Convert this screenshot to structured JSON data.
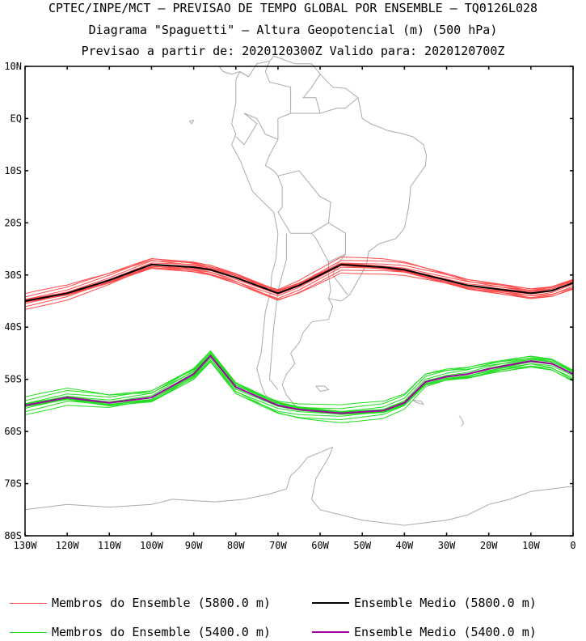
{
  "title": {
    "line1": "CPTEC/INPE/MCT — PREVISAO DE TEMPO GLOBAL POR ENSEMBLE — TQ0126L028",
    "line2": "Diagrama \"Spaguetti\" — Altura Geopotencial (m) (500 hPa)",
    "line3": "Previsao a partir de: 2020120300Z  Valido para: 2020120700Z"
  },
  "colors": {
    "member_5800": "#ff4b4b",
    "member_5400": "#22dd22",
    "mean_5800": "#000000",
    "mean_5400": "#a000a0",
    "coast": "#aaaaaa"
  },
  "map": {
    "lon_range": [
      -130,
      0
    ],
    "lat_range": [
      -80,
      10
    ],
    "lat_ticks": [
      {
        "value": 10,
        "label": "10N"
      },
      {
        "value": 0,
        "label": "EQ"
      },
      {
        "value": -10,
        "label": "10S"
      },
      {
        "value": -20,
        "label": "20S"
      },
      {
        "value": -30,
        "label": "30S"
      },
      {
        "value": -40,
        "label": "40S"
      },
      {
        "value": -50,
        "label": "50S"
      },
      {
        "value": -60,
        "label": "60S"
      },
      {
        "value": -70,
        "label": "70S"
      },
      {
        "value": -80,
        "label": "80S"
      }
    ],
    "lon_ticks": [
      {
        "value": -130,
        "label": "130W"
      },
      {
        "value": -120,
        "label": "120W"
      },
      {
        "value": -110,
        "label": "110W"
      },
      {
        "value": -100,
        "label": "100W"
      },
      {
        "value": -90,
        "label": "90W"
      },
      {
        "value": -80,
        "label": "80W"
      },
      {
        "value": -70,
        "label": "70W"
      },
      {
        "value": -60,
        "label": "60W"
      },
      {
        "value": -50,
        "label": "50W"
      },
      {
        "value": -40,
        "label": "40W"
      },
      {
        "value": -30,
        "label": "30W"
      },
      {
        "value": -20,
        "label": "20W"
      },
      {
        "value": -10,
        "label": "10W"
      },
      {
        "value": 0,
        "label": "0"
      }
    ]
  },
  "chart_data": {
    "type": "line",
    "x": [
      -130,
      -120,
      -110,
      -100,
      -90,
      -86,
      -80,
      -70,
      -65,
      -55,
      -45,
      -40,
      -35,
      -30,
      -25,
      -20,
      -10,
      -5,
      0
    ],
    "series": [
      {
        "name": "Ensemble Medio (5800.0 m)",
        "kind": "mean",
        "level": "5800",
        "values": [
          -35.0,
          -33.5,
          -31.0,
          -28.0,
          -28.5,
          -29.0,
          -30.5,
          -33.5,
          -32.0,
          -28.0,
          -28.5,
          -29.0,
          -30.0,
          -31.0,
          -32.0,
          -32.5,
          -33.5,
          -33.0,
          -31.5
        ]
      },
      {
        "name": "Ensemble Medio (5400.0 m)",
        "kind": "mean",
        "level": "5400",
        "values": [
          -55.0,
          -53.5,
          -54.5,
          -53.5,
          -49.0,
          -45.5,
          -51.5,
          -55.0,
          -55.8,
          -56.5,
          -56.0,
          -54.5,
          -50.5,
          -49.5,
          -49.0,
          -48.0,
          -46.5,
          -47.0,
          -49.0
        ]
      }
    ],
    "members": {
      "5800": {
        "count": 14,
        "spread_deg": 1.6
      },
      "5400": {
        "count": 14,
        "spread_deg": 1.8
      }
    }
  },
  "legend": [
    {
      "label": "Membros do Ensemble (5800.0 m)",
      "color_key": "member_5800",
      "width": 1
    },
    {
      "label": "Ensemble Medio (5800.0 m)",
      "color_key": "mean_5800",
      "width": 2
    },
    {
      "label": "Membros do Ensemble (5400.0 m)",
      "color_key": "member_5400",
      "width": 1
    },
    {
      "label": "Ensemble Medio (5400.0 m)",
      "color_key": "mean_5400",
      "width": 2
    }
  ]
}
